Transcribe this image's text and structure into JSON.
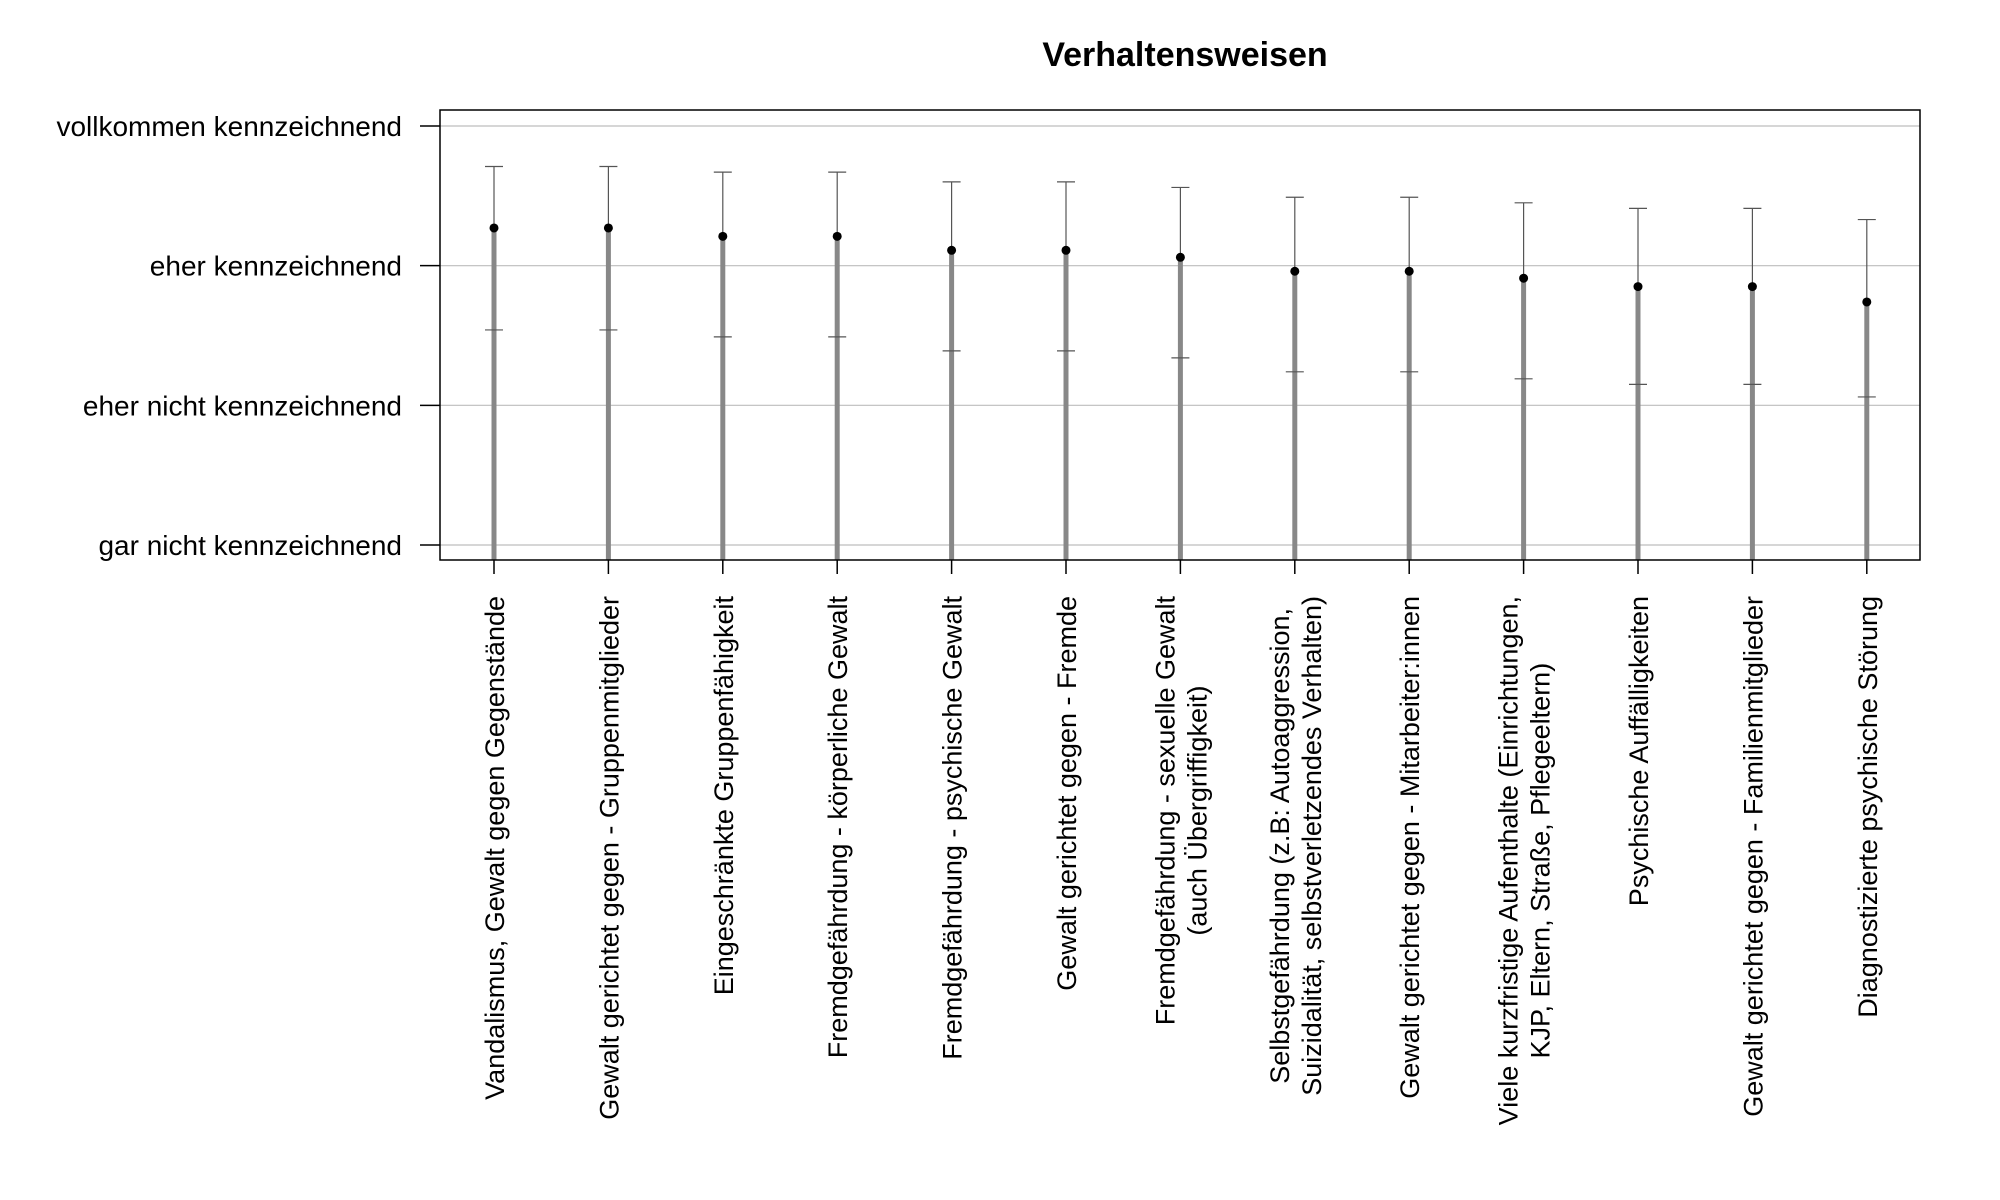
{
  "chart_data": {
    "type": "scatter",
    "title": "Verhaltensweisen",
    "xlabel": "",
    "ylabel": "",
    "ylim": [
      1,
      4
    ],
    "grid": true,
    "y_ticks": [
      {
        "value": 1,
        "label": "gar nicht kennzeichnend"
      },
      {
        "value": 2,
        "label": "eher nicht kennzeichnend"
      },
      {
        "value": 3,
        "label": "eher kennzeichnend"
      },
      {
        "value": 4,
        "label": "vollkommen kennzeichnend"
      }
    ],
    "categories": [
      [
        "Vandalismus, Gewalt gegen Gegenstände"
      ],
      [
        "Gewalt gerichtet gegen - Gruppenmitglieder"
      ],
      [
        "Eingeschränkte Gruppenfähigkeit"
      ],
      [
        "Fremdgefährdung - körperliche Gewalt"
      ],
      [
        "Fremdgefährdung - psychische Gewalt"
      ],
      [
        "Gewalt gerichtet gegen - Fremde"
      ],
      [
        "Fremdgefährdung - sexuelle Gewalt",
        "(auch Übergriffigkeit)"
      ],
      [
        "Selbstgefährdung (z.B: Autoaggression,",
        "Suizidalität, selbstverletzendes Verhalten)"
      ],
      [
        "Gewalt gerichtet gegen - Mitarbeiter:innen"
      ],
      [
        "Viele kurzfristige Aufenthalte (Einrichtungen,",
        "KJP, Eltern, Straße, Pflegeeltern)"
      ],
      [
        "Psychische Auffälligkeiten"
      ],
      [
        "Gewalt gerichtet gegen - Familienmitglieder"
      ],
      [
        "Diagnostizierte psychische Störung"
      ]
    ],
    "series": [
      {
        "mean": [
          3.27,
          3.27,
          3.21,
          3.21,
          3.11,
          3.11,
          3.06,
          2.96,
          2.96,
          2.91,
          2.85,
          2.85,
          2.74
        ],
        "upper": [
          3.71,
          3.71,
          3.67,
          3.67,
          3.6,
          3.6,
          3.56,
          3.49,
          3.49,
          3.45,
          3.41,
          3.41,
          3.33
        ],
        "lower": [
          2.54,
          2.54,
          2.49,
          2.49,
          2.39,
          2.39,
          2.34,
          2.24,
          2.24,
          2.19,
          2.15,
          2.15,
          2.06
        ]
      }
    ],
    "colors": {
      "point": "#000000",
      "error_bar": "#888888",
      "whisker_line": "#555555",
      "grid": "#bdbdbd",
      "frame": "#000000"
    }
  }
}
